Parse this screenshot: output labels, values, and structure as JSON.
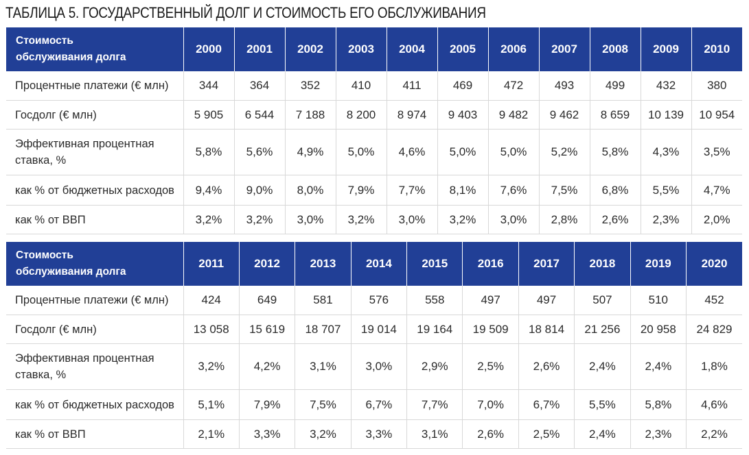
{
  "title": "ТАБЛИЦА 5. ГОСУДАРСТВЕННЫЙ ДОЛГ И СТОИМОСТЬ ЕГО ОБСЛУЖИВАНИЯ",
  "header_label_line1": "Стоимость",
  "header_label_line2": "обслуживания долга",
  "row_labels": [
    "Процентные платежи (€ млн)",
    "Госдолг (€ млн)",
    "Эффективная процентная ставка, %",
    "как % от бюджетных расходов",
    "как % от ВВП"
  ],
  "tables": [
    {
      "years": [
        "2000",
        "2001",
        "2002",
        "2003",
        "2004",
        "2005",
        "2006",
        "2007",
        "2008",
        "2009",
        "2010"
      ],
      "rows": [
        [
          "344",
          "364",
          "352",
          "410",
          "411",
          "469",
          "472",
          "493",
          "499",
          "432",
          "380"
        ],
        [
          "5 905",
          "6 544",
          "7 188",
          "8 200",
          "8 974",
          "9 403",
          "9 482",
          "9 462",
          "8 659",
          "10 139",
          "10 954"
        ],
        [
          "5,8%",
          "5,6%",
          "4,9%",
          "5,0%",
          "4,6%",
          "5,0%",
          "5,0%",
          "5,2%",
          "5,8%",
          "4,3%",
          "3,5%"
        ],
        [
          "9,4%",
          "9,0%",
          "8,0%",
          "7,9%",
          "7,7%",
          "8,1%",
          "7,6%",
          "7,5%",
          "6,8%",
          "5,5%",
          "4,7%"
        ],
        [
          "3,2%",
          "3,2%",
          "3,0%",
          "3,2%",
          "3,0%",
          "3,2%",
          "3,0%",
          "2,8%",
          "2,6%",
          "2,3%",
          "2,0%"
        ]
      ]
    },
    {
      "years": [
        "2011",
        "2012",
        "2013",
        "2014",
        "2015",
        "2016",
        "2017",
        "2018",
        "2019",
        "2020"
      ],
      "rows": [
        [
          "424",
          "649",
          "581",
          "576",
          "558",
          "497",
          "497",
          "507",
          "510",
          "452"
        ],
        [
          "13 058",
          "15 619",
          "18 707",
          "19 014",
          "19 164",
          "19 509",
          "18 814",
          "21 256",
          "20 958",
          "24 829"
        ],
        [
          "3,2%",
          "4,2%",
          "3,1%",
          "3,0%",
          "2,9%",
          "2,5%",
          "2,6%",
          "2,4%",
          "2,4%",
          "1,8%"
        ],
        [
          "5,1%",
          "7,9%",
          "7,5%",
          "6,7%",
          "7,7%",
          "7,0%",
          "6,7%",
          "5,5%",
          "5,8%",
          "4,6%"
        ],
        [
          "2,1%",
          "3,3%",
          "3,2%",
          "3,3%",
          "3,1%",
          "2,6%",
          "2,5%",
          "2,4%",
          "2,3%",
          "2,2%"
        ]
      ]
    }
  ],
  "colors": {
    "header_bg": "#213f96",
    "header_text": "#ffffff",
    "grid": "#d8d8d8"
  }
}
